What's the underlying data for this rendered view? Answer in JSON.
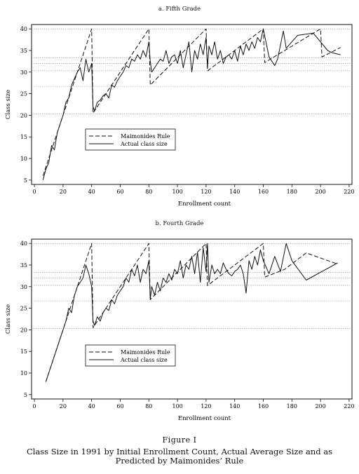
{
  "figure": {
    "label": "Figure I",
    "caption_line1": "Class Size in 1991 by Initial Enrollment Count, Actual Average Size and as",
    "caption_line2": "Predicted by Maimonides’ Rule"
  },
  "chart_data": [
    {
      "type": "line",
      "title": "a. Fifth Grade",
      "xlabel": "Enrollment count",
      "ylabel": "Class size",
      "xlim": [
        -2,
        222
      ],
      "ylim": [
        4,
        41
      ],
      "xticks": [
        0,
        20,
        40,
        60,
        80,
        100,
        120,
        140,
        160,
        180,
        200,
        220
      ],
      "yticks": [
        5,
        10,
        15,
        20,
        25,
        30,
        35,
        40
      ],
      "reference_lines": [
        20.3,
        26.7,
        30.3,
        32,
        33.3,
        40
      ],
      "legend": {
        "position": "center-left",
        "entries": [
          "Maimonides Rule",
          "Actual class size"
        ]
      },
      "series": [
        {
          "name": "Maimonides Rule",
          "style": "dashed",
          "x": [
            6,
            40,
            41,
            80,
            81,
            120,
            121,
            160,
            161,
            200,
            201,
            214
          ],
          "y": [
            6,
            40,
            20.5,
            40,
            27,
            40,
            30.25,
            40,
            32.2,
            40,
            33.5,
            35.7
          ]
        },
        {
          "name": "Actual class size",
          "style": "solid",
          "x": [
            6,
            8,
            10,
            12,
            14,
            16,
            18,
            20,
            22,
            24,
            26,
            28,
            30,
            32,
            34,
            36,
            38,
            40,
            41,
            42,
            44,
            46,
            48,
            50,
            52,
            54,
            56,
            58,
            60,
            62,
            64,
            66,
            68,
            70,
            72,
            74,
            76,
            78,
            80,
            81,
            82,
            84,
            86,
            88,
            90,
            92,
            94,
            96,
            98,
            100,
            102,
            104,
            106,
            108,
            110,
            112,
            114,
            116,
            118,
            120,
            121,
            122,
            124,
            126,
            128,
            130,
            132,
            134,
            136,
            138,
            140,
            142,
            144,
            146,
            148,
            150,
            152,
            154,
            156,
            158,
            160,
            164,
            168,
            170,
            174,
            176,
            180,
            184,
            195,
            205,
            208,
            214
          ],
          "y": [
            5,
            7.5,
            9,
            13,
            12,
            16,
            18,
            20,
            23,
            24,
            27,
            28.5,
            30,
            31,
            28,
            33,
            30,
            32,
            22,
            21,
            23,
            23.5,
            24.5,
            25,
            24,
            27,
            26.5,
            28,
            29,
            30,
            31.5,
            31,
            33,
            32.5,
            34,
            33,
            35,
            33.5,
            37,
            32.5,
            30,
            31,
            32,
            33,
            32.5,
            35,
            32,
            33.5,
            34,
            32,
            35,
            31,
            34,
            37,
            30,
            35,
            33,
            36.5,
            34,
            38,
            31,
            36,
            34,
            37,
            33,
            35,
            32,
            33.5,
            34,
            33,
            35,
            32.5,
            36,
            34,
            36.5,
            35,
            37,
            35.5,
            38,
            37,
            40,
            33.5,
            31.5,
            33,
            39.5,
            35.5,
            37,
            38.5,
            39,
            35,
            34.5,
            34
          ]
        }
      ]
    },
    {
      "type": "line",
      "title": "b. Fourth Grade",
      "xlabel": "Enrollment count",
      "ylabel": "Class size",
      "xlim": [
        -2,
        222
      ],
      "ylim": [
        4,
        41
      ],
      "xticks": [
        0,
        20,
        40,
        60,
        80,
        100,
        120,
        140,
        160,
        180,
        200,
        220
      ],
      "yticks": [
        5,
        10,
        15,
        20,
        25,
        30,
        35,
        40
      ],
      "reference_lines": [
        20.3,
        26.7,
        30.3,
        32,
        33.3,
        40
      ],
      "legend": {
        "position": "center-left",
        "entries": [
          "Maimonides Rule",
          "Actual class size"
        ]
      },
      "series": [
        {
          "name": "Maimonides Rule",
          "style": "dashed",
          "x": [
            8,
            40,
            41,
            80,
            81,
            120,
            121,
            160,
            161,
            175,
            190,
            212
          ],
          "y": [
            8,
            40,
            20.5,
            40,
            27,
            40,
            30.25,
            40,
            32.2,
            34,
            37.8,
            35.2
          ]
        },
        {
          "name": "Actual class size",
          "style": "solid",
          "x": [
            8,
            10,
            12,
            14,
            16,
            18,
            20,
            22,
            24,
            26,
            28,
            30,
            32,
            34,
            36,
            38,
            40,
            41,
            42,
            44,
            46,
            48,
            50,
            52,
            54,
            56,
            58,
            60,
            62,
            64,
            66,
            68,
            70,
            72,
            74,
            76,
            78,
            80,
            81,
            82,
            84,
            86,
            88,
            90,
            92,
            94,
            96,
            98,
            100,
            102,
            104,
            106,
            108,
            110,
            112,
            114,
            116,
            118,
            120,
            121,
            122,
            124,
            126,
            128,
            130,
            132,
            134,
            136,
            138,
            140,
            142,
            144,
            146,
            148,
            150,
            152,
            154,
            156,
            158,
            160,
            164,
            168,
            172,
            176,
            180,
            190,
            212
          ],
          "y": [
            8,
            10,
            12,
            14,
            16,
            18,
            20,
            22,
            25,
            24,
            28,
            30,
            31,
            32,
            35,
            33,
            30,
            22,
            21,
            23,
            22,
            24,
            25,
            24.5,
            27,
            26,
            28,
            29,
            30,
            32,
            31,
            34,
            32.5,
            35,
            31,
            34,
            33,
            36,
            27,
            30,
            28,
            31,
            29,
            32,
            31,
            33,
            31.5,
            34,
            33,
            36,
            32,
            35,
            34,
            37,
            33,
            38,
            31,
            39,
            33.5,
            40,
            31,
            35,
            33,
            34,
            33,
            35.5,
            34,
            33,
            32.5,
            33.5,
            34,
            35,
            33,
            28.5,
            36,
            34,
            37,
            35,
            38.5,
            36,
            33,
            37,
            33.5,
            40,
            36,
            31.5,
            35.5
          ]
        }
      ]
    }
  ]
}
